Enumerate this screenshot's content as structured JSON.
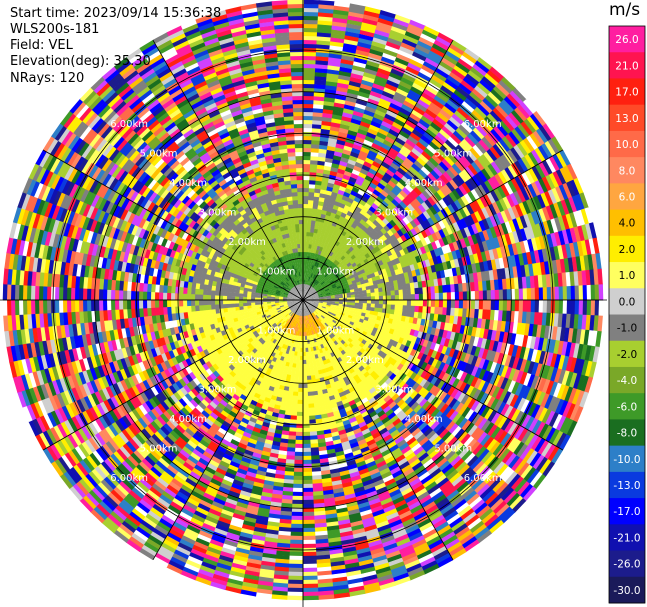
{
  "header": {
    "start_time": "Start time: 2023/09/14 15:36:38",
    "instrument": "WLS200s-181",
    "field": "Field: VEL",
    "elevation": "Elevation(deg): 35.30",
    "nrays": "NRays: 120"
  },
  "colorbar": {
    "unit": "m/s",
    "ticks": [
      "26.0",
      "21.0",
      "17.0",
      "13.0",
      "10.0",
      "8.0",
      "6.0",
      "4.0",
      "2.0",
      "1.0",
      "0.0",
      "-1.0",
      "-2.0",
      "-4.0",
      "-6.0",
      "-8.0",
      "-10.0",
      "-13.0",
      "-17.0",
      "-21.0",
      "-26.0",
      "-30.0"
    ],
    "colors": [
      "#ff1ea0",
      "#ff1450",
      "#ff2010",
      "#ff4a28",
      "#ff6a48",
      "#ff8860",
      "#ffa640",
      "#ffbf00",
      "#ffee00",
      "#ffff60",
      "#cfcfcf",
      "#808080",
      "#a8cf30",
      "#7aa828",
      "#3e9a28",
      "#1a6e20",
      "#2d7fc8",
      "#0a3adf",
      "#0000ff",
      "#1010b0",
      "#1c1c8c",
      "#1a1a5a"
    ]
  },
  "chart_data": {
    "type": "heatmap",
    "projection": "polar-ppi",
    "field": "VEL",
    "unit": "m/s",
    "nrays": 120,
    "range_rings_km": [
      1.0,
      2.0,
      3.0,
      4.0,
      5.0,
      6.0
    ],
    "ring_labels": [
      "1.00km",
      "2.00km",
      "3.00km",
      "4.00km",
      "5.00km",
      "6.00km"
    ],
    "max_range_km": 7.2,
    "spoke_step_deg": 30,
    "regions": [
      {
        "desc": "near-field gray",
        "range_km": [
          0.0,
          0.35
        ],
        "value": 0.0
      },
      {
        "desc": "north dark green",
        "range_km": [
          0.35,
          1.1
        ],
        "az_deg": [
          280,
          80
        ],
        "value": -6.0
      },
      {
        "desc": "north yellow-green",
        "range_km": [
          1.1,
          2.2
        ],
        "az_deg": [
          290,
          70
        ],
        "value": -2.0
      },
      {
        "desc": "south orange",
        "range_km": [
          0.3,
          0.8
        ],
        "az_deg": [
          140,
          215
        ],
        "value": 6.0
      },
      {
        "desc": "south yellow",
        "range_km": [
          0.3,
          2.6
        ],
        "az_deg": [
          100,
          265
        ],
        "value": 2.0
      },
      {
        "desc": "noise",
        "range_km": [
          2.6,
          7.2
        ],
        "value": "random"
      }
    ]
  }
}
